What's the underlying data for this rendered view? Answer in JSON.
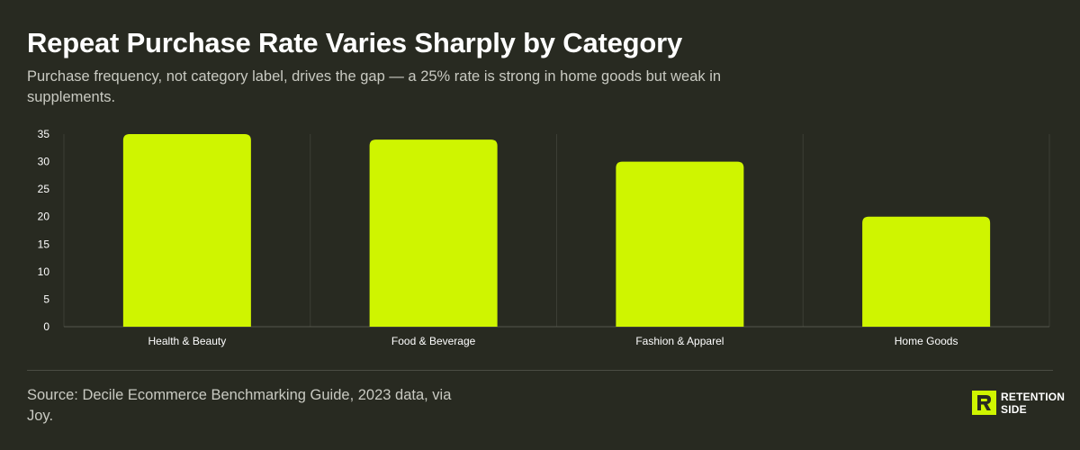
{
  "header": {
    "title": "Repeat Purchase Rate Varies Sharply by Category",
    "subtitle": "Purchase frequency, not category label, drives the gap — a 25% rate is strong in home goods but weak in supplements."
  },
  "footer": {
    "source": "Source: Decile Ecommerce Benchmarking Guide, 2023 data, via Joy.",
    "logo_line1": "RETENTION",
    "logo_line2": "SIDE"
  },
  "colors": {
    "background": "#282a21",
    "bar": "#cff500",
    "grid": "#3c3e35",
    "axis_text": "#ffffff"
  },
  "chart_data": {
    "type": "bar",
    "categories": [
      "Health & Beauty",
      "Food & Beverage",
      "Fashion & Apparel",
      "Home Goods"
    ],
    "values": [
      35,
      34,
      30,
      20
    ],
    "title": "",
    "xlabel": "",
    "ylabel": "",
    "ylim": [
      0,
      35
    ],
    "yticks": [
      0,
      5,
      10,
      15,
      20,
      25,
      30,
      35
    ],
    "grid": true,
    "legend": "none"
  }
}
